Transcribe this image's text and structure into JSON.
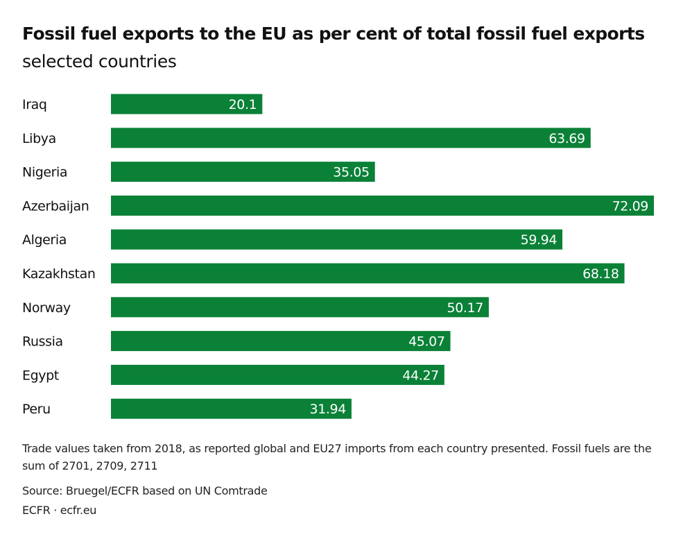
{
  "chart_data": {
    "type": "bar",
    "orientation": "horizontal",
    "title": "Fossil fuel exports to the EU as per cent of total fossil fuel exports",
    "subtitle": "selected countries",
    "categories": [
      "Iraq",
      "Libya",
      "Nigeria",
      "Azerbaijan",
      "Algeria",
      "Kazakhstan",
      "Norway",
      "Russia",
      "Egypt",
      "Peru"
    ],
    "values": [
      20.1,
      63.69,
      35.05,
      72.09,
      59.94,
      68.18,
      50.17,
      45.07,
      44.27,
      31.94
    ],
    "data_labels": [
      "20.1",
      "63.69",
      "35.05",
      "72.09",
      "59.94",
      "68.18",
      "50.17",
      "45.07",
      "44.27",
      "31.94"
    ],
    "xlim": [
      0,
      72.09
    ],
    "grid": false,
    "legend": "none",
    "bar_color": "#0a8137",
    "label_color": "#ffffff"
  },
  "footer": {
    "note": "Trade values taken from 2018, as reported global and EU27 imports from each country presented. Fossil fuels are the sum of 2701, 2709, 2711",
    "source": "Source: Bruegel/ECFR based on UN Comtrade",
    "credit": "ECFR · ecfr.eu"
  }
}
